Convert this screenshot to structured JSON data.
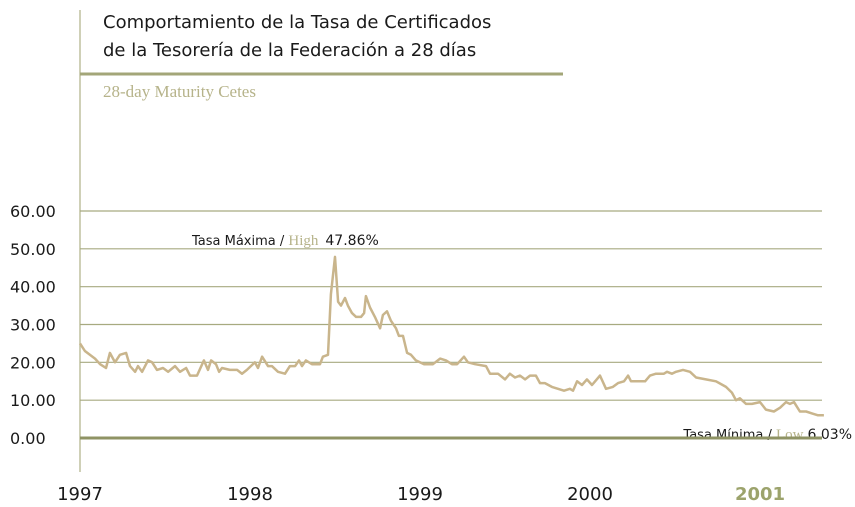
{
  "chart_data": {
    "type": "line",
    "title": [
      "Comportamiento de la Tasa de Certificados",
      "de la Tesorería de la Federación a 28 días"
    ],
    "subtitle": "28-day Maturity Cetes",
    "color": "#c9b58c",
    "x": [
      1997.0,
      1997.029,
      1997.088,
      1997.118,
      1997.153,
      1997.176,
      1997.206,
      1997.235,
      1997.271,
      1997.294,
      1997.324,
      1997.341,
      1997.365,
      1997.4,
      1997.424,
      1997.453,
      1997.488,
      1997.518,
      1997.559,
      1997.588,
      1997.624,
      1997.647,
      1997.688,
      1997.729,
      1997.753,
      1997.771,
      1997.8,
      1997.818,
      1997.835,
      1997.882,
      1997.924,
      1997.953,
      1997.982,
      1998.029,
      1998.047,
      1998.071,
      1998.106,
      1998.129,
      1998.165,
      1998.206,
      1998.235,
      1998.265,
      1998.288,
      1998.306,
      1998.329,
      1998.365,
      1998.412,
      1998.429,
      1998.459,
      1998.476,
      1998.5,
      1998.518,
      1998.535,
      1998.559,
      1998.576,
      1998.6,
      1998.624,
      1998.653,
      1998.671,
      1998.682,
      1998.706,
      1998.735,
      1998.765,
      1998.782,
      1998.806,
      1998.829,
      1998.859,
      1998.876,
      1998.9,
      1998.924,
      1998.947,
      1998.976,
      1999.024,
      1999.076,
      1999.118,
      1999.153,
      1999.188,
      1999.218,
      1999.259,
      1999.282,
      1999.324,
      1999.388,
      1999.412,
      1999.459,
      1999.5,
      1999.529,
      1999.559,
      1999.588,
      1999.618,
      1999.647,
      1999.682,
      1999.706,
      1999.735,
      1999.776,
      1999.812,
      1999.847,
      1999.882,
      1999.9,
      1999.924,
      1999.953,
      1999.982,
      2000.012,
      2000.059,
      2000.094,
      2000.135,
      2000.165,
      2000.2,
      2000.224,
      2000.241,
      2000.294,
      2000.324,
      2000.353,
      2000.388,
      2000.435,
      2000.453,
      2000.482,
      2000.506,
      2000.547,
      2000.588,
      2000.624,
      2000.682,
      2000.741,
      2000.8,
      2000.835,
      2000.859,
      2000.882,
      2000.918,
      2000.953,
      2001.0,
      2001.035,
      2001.082,
      2001.118,
      2001.153,
      2001.176,
      2001.2,
      2001.235,
      2001.271,
      2001.306,
      2001.341,
      2001.376
    ],
    "values": [
      25,
      23,
      21,
      19.5,
      18.5,
      22.5,
      20,
      22,
      22.5,
      19,
      17.5,
      19,
      17.5,
      20.5,
      20,
      18,
      18.5,
      17.5,
      19,
      17.5,
      18.5,
      16.5,
      16.5,
      20.5,
      18,
      20.5,
      19.5,
      17.5,
      18.5,
      18,
      18,
      17,
      18,
      20,
      18.5,
      21.5,
      19,
      19,
      17.5,
      17,
      19,
      19,
      20.5,
      19,
      20.5,
      19.5,
      19.5,
      21.5,
      22,
      38,
      47.86,
      36,
      35,
      37,
      35,
      33,
      32,
      32,
      33,
      37.5,
      34.5,
      32,
      29,
      32.5,
      33.5,
      31,
      29,
      27,
      27,
      22.5,
      22,
      20.5,
      19.5,
      19.5,
      21,
      20.5,
      19.5,
      19.5,
      21.5,
      20,
      19.5,
      19,
      17,
      17,
      15.5,
      17,
      16,
      16.5,
      15.5,
      16.5,
      16.5,
      14.5,
      14.5,
      13.5,
      13,
      12.5,
      13,
      12.5,
      15,
      14,
      15.5,
      14,
      16.5,
      13,
      13.5,
      14.5,
      15,
      16.5,
      15,
      15,
      15,
      16.5,
      17,
      17,
      17.5,
      17,
      17.5,
      18,
      17.5,
      16,
      15.5,
      15,
      13.5,
      12,
      10,
      10.5,
      9,
      9,
      9.5,
      7.5,
      7,
      8,
      9.5,
      9,
      9.5,
      7,
      7,
      6.5,
      6,
      6.03
    ],
    "xlim": [
      1997,
      2001.4
    ],
    "xticks": [
      1997,
      1998,
      1999,
      2000,
      2001
    ],
    "ylim": [
      0,
      60
    ],
    "yticks": [
      {
        "value": 0,
        "label": "0.00"
      },
      {
        "value": 10,
        "label": "10.00"
      },
      {
        "value": 20,
        "label": "20.00"
      },
      {
        "value": 30,
        "label": "30.00"
      },
      {
        "value": 40,
        "label": "40.00"
      },
      {
        "value": 50,
        "label": "50.00"
      },
      {
        "value": 60,
        "label": "60.00"
      }
    ],
    "grid": true,
    "annotations": [
      {
        "text": "Tasa Máxima / ",
        "highlight": "High",
        "label": "47.86%"
      },
      {
        "text": "Tasa Mínima / ",
        "highlight": "Low",
        "label": "6.03%"
      }
    ]
  }
}
